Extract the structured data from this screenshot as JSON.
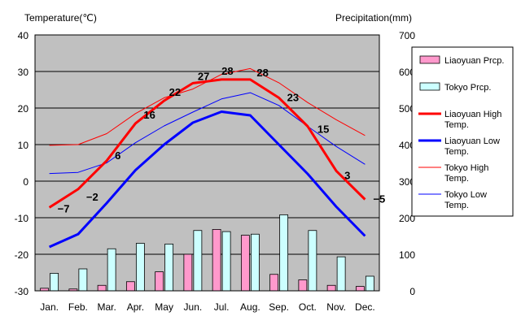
{
  "chart_data": {
    "type": "bar+line",
    "left_axis_title": "Temperature(℃)",
    "right_axis_title": "Precipitation(mm)",
    "categories": [
      "Jan.",
      "Feb.",
      "Mar.",
      "Apr.",
      "May",
      "Jun.",
      "Jul.",
      "Aug.",
      "Sep.",
      "Oct.",
      "Nov.",
      "Dec."
    ],
    "temp_axis": {
      "min": -30,
      "max": 40,
      "ticks": [
        "40",
        "30",
        "20",
        "10",
        "0",
        "-10",
        "-20",
        "-30"
      ]
    },
    "precip_axis": {
      "min": 0,
      "max": 700,
      "ticks": [
        "700",
        "600",
        "500",
        "400",
        "300",
        "200",
        "100",
        "0"
      ]
    },
    "grid": true,
    "background_color": "#c0c0c0",
    "bars": [
      {
        "name": "Liaoyuan Prcp.",
        "color": "#ff99cc",
        "values": [
          7,
          5,
          15,
          25,
          52,
          100,
          168,
          152,
          45,
          30,
          15,
          12
        ]
      },
      {
        "name": "Tokyo Prcp.",
        "color": "#ccffff",
        "values": [
          48,
          60,
          115,
          130,
          128,
          165,
          162,
          155,
          208,
          165,
          93,
          40
        ]
      }
    ],
    "lines": [
      {
        "name": "Liaoyuan High Temp.",
        "color": "#ff0000",
        "width": 3,
        "values": [
          -7.2,
          -2.2,
          5.6,
          15.8,
          22,
          26.8,
          27.8,
          27.8,
          22.8,
          15,
          2.8,
          -5
        ]
      },
      {
        "name": "Liaoyuan Low Temp.",
        "color": "#0000ff",
        "width": 3,
        "values": [
          -18,
          -14.5,
          -6,
          3,
          10,
          16,
          19,
          18,
          10,
          2,
          -7,
          -15
        ]
      },
      {
        "name": "Tokyo High Temp.",
        "color": "#ff0000",
        "width": 1,
        "values": [
          9.8,
          10,
          13,
          18.5,
          22.8,
          25.2,
          29.2,
          30.8,
          26.9,
          21.5,
          16.8,
          12.5
        ]
      },
      {
        "name": "Tokyo Low Temp.",
        "color": "#0000ff",
        "width": 1,
        "values": [
          2.1,
          2.4,
          5,
          10.5,
          15.1,
          18.9,
          22.5,
          24.2,
          20.7,
          15,
          9.5,
          4.6
        ]
      }
    ],
    "data_labels": [
      "−7",
      "−2",
      "6",
      "16",
      "22",
      "27",
      "28",
      "28",
      "23",
      "15",
      "3",
      "−5"
    ],
    "legend": {
      "placement": "right",
      "items": [
        {
          "label": "Liaoyuan Prcp.",
          "kind": "box",
          "color": "#ff99cc"
        },
        {
          "label": "Tokyo Prcp.",
          "kind": "box",
          "color": "#ccffff"
        },
        {
          "label": "Liaoyuan High Temp.",
          "kind": "line",
          "color": "#ff0000",
          "width": 3
        },
        {
          "label": "Liaoyuan Low Temp.",
          "kind": "line",
          "color": "#0000ff",
          "width": 3
        },
        {
          "label": "Tokyo High Temp.",
          "kind": "line",
          "color": "#ff0000",
          "width": 1
        },
        {
          "label": "Tokyo Low Temp.",
          "kind": "line",
          "color": "#0000ff",
          "width": 1
        }
      ]
    }
  }
}
